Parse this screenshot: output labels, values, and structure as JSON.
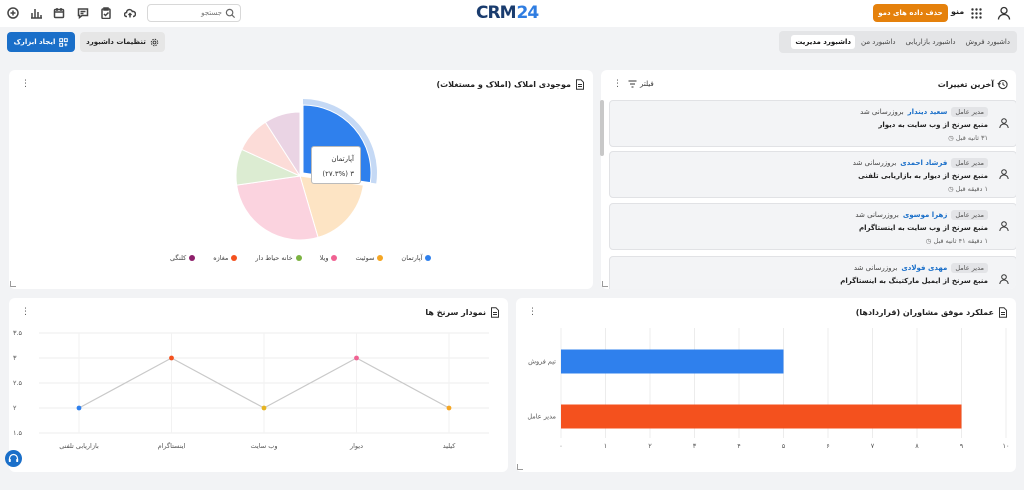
{
  "topbar": {
    "search_placeholder": "جستجو",
    "logo_text": "CRM",
    "logo_number": "24",
    "demo_button": "حذف داده های دمو",
    "menu_label": "منو",
    "icons": [
      "plus-circle-icon",
      "chart-icon",
      "calendar-icon",
      "message-icon",
      "clipboard-icon",
      "cloud-upload-icon"
    ]
  },
  "toolbar": {
    "create_widget": "ایجاد ابزارک",
    "dashboard_settings": "تنظیمات داشبورد"
  },
  "tabs": [
    {
      "label": "داشبورد فروش",
      "active": false
    },
    {
      "label": "داشبورد بازاریابی",
      "active": false
    },
    {
      "label": "داشبورد من",
      "active": false
    },
    {
      "label": "داشبورد مدیریت",
      "active": true
    }
  ],
  "recent_changes": {
    "title": "آخرین تغییرات",
    "filter_label": "فیلتر",
    "items": [
      {
        "role": "مدیر عامل",
        "name": "سعید دیندار",
        "action": "بروزرسانی شد",
        "detail": "منبع سرنخ از وب سایت به دیوار",
        "time": "۳۱ ثانیه قبل"
      },
      {
        "role": "مدیر عامل",
        "name": "فرشاد احمدی",
        "action": "بروزرسانی شد",
        "detail": "منبع سرنخ از دیوار به بازاریابی تلفنی",
        "time": "۱ دقیقه قبل"
      },
      {
        "role": "مدیر عامل",
        "name": "زهرا موسوی",
        "action": "بروزرسانی شد",
        "detail": "منبع سرنخ از وب سایت به اینستاگرام",
        "time": "۱ دقیقه ۴۱ ثانیه قبل"
      },
      {
        "role": "مدیر عامل",
        "name": "مهدی فولادی",
        "action": "بروزرسانی شد",
        "detail": "منبع سرنخ از ایمیل مارکتینگ به اینستاگرام",
        "time": ""
      }
    ]
  },
  "property_inventory": {
    "title": "موجودی املاک (املاک و مستغلات)",
    "tooltip_label": "آپارتمان",
    "tooltip_value": "۳ (۲۷.۳%)",
    "chart_data": {
      "type": "pie",
      "categories": [
        "آپارتمان",
        "سوئیت",
        "ویلا",
        "خانه حیاط دار",
        "مغازه",
        "کلنگی"
      ],
      "values": [
        27.3,
        18.2,
        27.3,
        9.1,
        9.1,
        9.1
      ],
      "colors": [
        "#2f80ed",
        "#fde4c4",
        "#fbd3df",
        "#dcecd2",
        "#fcdcd8",
        "#ead4e4"
      ],
      "legend_colors": [
        "#2f80ed",
        "#f5a623",
        "#f06292",
        "#7cb342",
        "#f4511e",
        "#8e1f6b"
      ],
      "title": "موجودی املاک (املاک و مستغلات)",
      "legend": "bottom"
    }
  },
  "lead_chart": {
    "title": "نمودار سرنخ ها",
    "chart_data": {
      "type": "line",
      "categories": [
        "بازاریابی تلفنی",
        "اینستاگرام",
        "وب سایت",
        "دیوار",
        "کیلید"
      ],
      "series": [
        {
          "values": [
            2,
            3,
            2,
            3,
            2
          ]
        }
      ],
      "point_colors": [
        "#2f80ed",
        "#f4511e",
        "#e6b422",
        "#f06292",
        "#f5a623"
      ],
      "y_ticks": [
        "۱.۵",
        "۲",
        "۲.۵",
        "۳",
        "۳.۵"
      ],
      "ylim": [
        1.5,
        3.5
      ],
      "title": "نمودار سرنخ ها"
    }
  },
  "advisor_perf": {
    "title": "عملکرد موفق مشاوران (قراردادها)",
    "chart_data": {
      "type": "bar",
      "orientation": "horizontal",
      "categories": [
        "تیم فروش",
        "مدیر عامل"
      ],
      "values": [
        5,
        9
      ],
      "colors": [
        "#2f80ed",
        "#f4511e"
      ],
      "x_ticks": [
        "۰",
        "۱",
        "۲",
        "۳",
        "۴",
        "۵",
        "۶",
        "۷",
        "۸",
        "۹",
        "۱۰"
      ],
      "xlim": [
        0,
        10
      ],
      "title": "عملکرد موفق مشاوران (قراردادها)"
    }
  }
}
